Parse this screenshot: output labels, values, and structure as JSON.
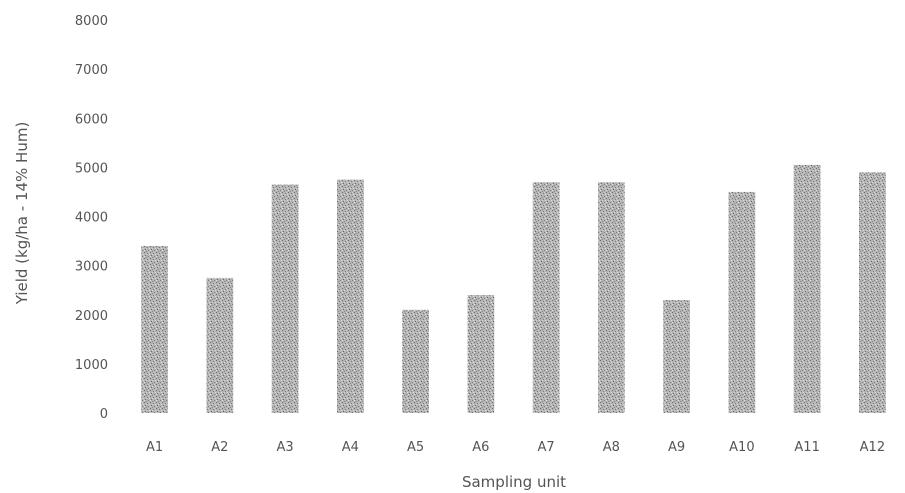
{
  "chart_data": {
    "type": "bar",
    "title": "",
    "xlabel": "Sampling unit",
    "ylabel": "Yield (kg/ha - 14% Hum)",
    "categories": [
      "A1",
      "A2",
      "A3",
      "A4",
      "A5",
      "A6",
      "A7",
      "A8",
      "A9",
      "A10",
      "A11",
      "A12"
    ],
    "values": [
      3400,
      2750,
      4650,
      4750,
      2100,
      2400,
      4700,
      4700,
      2300,
      4500,
      5050,
      4900
    ],
    "ylim": [
      0,
      8000
    ],
    "yticks": [
      0,
      1000,
      2000,
      3000,
      4000,
      5000,
      6000,
      7000,
      8000
    ],
    "grid": false,
    "legend": "none",
    "bar_color": "#a8a8a8"
  }
}
